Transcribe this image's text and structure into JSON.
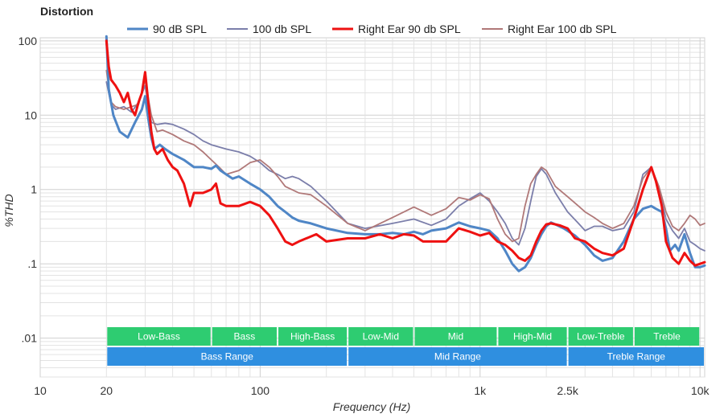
{
  "chart_data": {
    "type": "line",
    "title": "Distortion",
    "xlabel": "Frequency (Hz)",
    "ylabel": "%THD",
    "xscale": "log",
    "yscale": "log",
    "xlim": [
      10,
      10500
    ],
    "ylim": [
      0.003,
      110
    ],
    "legend_position": "top",
    "x_ticks": [
      {
        "value": 10,
        "label": "10"
      },
      {
        "value": 20,
        "label": "20"
      },
      {
        "value": 100,
        "label": "100"
      },
      {
        "value": 1000,
        "label": "1k"
      },
      {
        "value": 2500,
        "label": "2.5k"
      },
      {
        "value": 10000,
        "label": "10k"
      }
    ],
    "y_ticks": [
      {
        "value": 100,
        "label": "100"
      },
      {
        "value": 10,
        "label": "10"
      },
      {
        "value": 1,
        "label": "1"
      },
      {
        "value": 0.1,
        "label": ".1"
      },
      {
        "value": 0.01,
        "label": ".01"
      }
    ],
    "series": [
      {
        "name": "90 dB SPL",
        "color": "#4f86c6",
        "points": [
          [
            20,
            115
          ],
          [
            20.5,
            22
          ],
          [
            21.5,
            10
          ],
          [
            23,
            6
          ],
          [
            25,
            5
          ],
          [
            27,
            8
          ],
          [
            29,
            12
          ],
          [
            30,
            18
          ],
          [
            31,
            9
          ],
          [
            32,
            5
          ],
          [
            33,
            3.5
          ],
          [
            35,
            4
          ],
          [
            37,
            3.5
          ],
          [
            40,
            3
          ],
          [
            45,
            2.5
          ],
          [
            50,
            2
          ],
          [
            55,
            2
          ],
          [
            60,
            1.9
          ],
          [
            63,
            2.1
          ],
          [
            66,
            1.8
          ],
          [
            70,
            1.6
          ],
          [
            75,
            1.4
          ],
          [
            80,
            1.5
          ],
          [
            90,
            1.2
          ],
          [
            100,
            1
          ],
          [
            110,
            0.8
          ],
          [
            120,
            0.6
          ],
          [
            130,
            0.5
          ],
          [
            140,
            0.42
          ],
          [
            150,
            0.38
          ],
          [
            170,
            0.35
          ],
          [
            200,
            0.3
          ],
          [
            250,
            0.26
          ],
          [
            300,
            0.25
          ],
          [
            350,
            0.25
          ],
          [
            400,
            0.26
          ],
          [
            450,
            0.25
          ],
          [
            500,
            0.27
          ],
          [
            550,
            0.25
          ],
          [
            600,
            0.28
          ],
          [
            700,
            0.3
          ],
          [
            800,
            0.36
          ],
          [
            900,
            0.32
          ],
          [
            1000,
            0.3
          ],
          [
            1100,
            0.28
          ],
          [
            1200,
            0.22
          ],
          [
            1300,
            0.15
          ],
          [
            1400,
            0.1
          ],
          [
            1500,
            0.08
          ],
          [
            1600,
            0.09
          ],
          [
            1700,
            0.12
          ],
          [
            1800,
            0.18
          ],
          [
            1900,
            0.25
          ],
          [
            2000,
            0.32
          ],
          [
            2100,
            0.36
          ],
          [
            2200,
            0.34
          ],
          [
            2400,
            0.3
          ],
          [
            2700,
            0.24
          ],
          [
            3000,
            0.18
          ],
          [
            3300,
            0.13
          ],
          [
            3600,
            0.11
          ],
          [
            4000,
            0.12
          ],
          [
            4500,
            0.2
          ],
          [
            5000,
            0.4
          ],
          [
            5500,
            0.55
          ],
          [
            6000,
            0.6
          ],
          [
            6300,
            0.55
          ],
          [
            6700,
            0.5
          ],
          [
            7000,
            0.3
          ],
          [
            7300,
            0.15
          ],
          [
            7700,
            0.18
          ],
          [
            8000,
            0.15
          ],
          [
            8500,
            0.25
          ],
          [
            9000,
            0.14
          ],
          [
            9500,
            0.09
          ],
          [
            10000,
            0.09
          ],
          [
            10500,
            0.095
          ]
        ]
      },
      {
        "name": "100 db SPL",
        "color": "#7b7eaa",
        "points": [
          [
            20,
            28
          ],
          [
            21,
            14
          ],
          [
            22,
            12
          ],
          [
            24,
            13
          ],
          [
            26,
            11
          ],
          [
            28,
            15
          ],
          [
            30,
            25
          ],
          [
            32,
            8
          ],
          [
            34,
            7.5
          ],
          [
            37,
            7.8
          ],
          [
            40,
            7.5
          ],
          [
            45,
            6.5
          ],
          [
            50,
            5.5
          ],
          [
            55,
            4.5
          ],
          [
            60,
            4
          ],
          [
            70,
            3.5
          ],
          [
            80,
            3.2
          ],
          [
            90,
            2.8
          ],
          [
            100,
            2.3
          ],
          [
            110,
            1.8
          ],
          [
            120,
            1.6
          ],
          [
            130,
            1.4
          ],
          [
            140,
            1.5
          ],
          [
            150,
            1.4
          ],
          [
            170,
            1.1
          ],
          [
            200,
            0.7
          ],
          [
            250,
            0.35
          ],
          [
            300,
            0.3
          ],
          [
            400,
            0.35
          ],
          [
            500,
            0.4
          ],
          [
            600,
            0.33
          ],
          [
            700,
            0.4
          ],
          [
            800,
            0.6
          ],
          [
            900,
            0.75
          ],
          [
            1000,
            0.9
          ],
          [
            1100,
            0.7
          ],
          [
            1200,
            0.5
          ],
          [
            1300,
            0.35
          ],
          [
            1400,
            0.22
          ],
          [
            1500,
            0.18
          ],
          [
            1600,
            0.3
          ],
          [
            1700,
            0.7
          ],
          [
            1800,
            1.5
          ],
          [
            1900,
            1.9
          ],
          [
            2000,
            1.6
          ],
          [
            2200,
            0.9
          ],
          [
            2500,
            0.5
          ],
          [
            2800,
            0.35
          ],
          [
            3000,
            0.28
          ],
          [
            3300,
            0.32
          ],
          [
            3600,
            0.32
          ],
          [
            4000,
            0.28
          ],
          [
            4500,
            0.3
          ],
          [
            5000,
            0.5
          ],
          [
            5500,
            1.6
          ],
          [
            6000,
            2.0
          ],
          [
            6500,
            1.0
          ],
          [
            7000,
            0.4
          ],
          [
            7500,
            0.28
          ],
          [
            8000,
            0.22
          ],
          [
            8500,
            0.3
          ],
          [
            9000,
            0.2
          ],
          [
            9500,
            0.18
          ],
          [
            10000,
            0.16
          ],
          [
            10500,
            0.15
          ]
        ]
      },
      {
        "name": "Right Ear 90 db SPL",
        "color": "#ee1111",
        "points": [
          [
            20,
            100
          ],
          [
            20.5,
            45
          ],
          [
            21,
            30
          ],
          [
            22,
            25
          ],
          [
            23,
            20
          ],
          [
            24,
            15
          ],
          [
            25,
            20
          ],
          [
            26,
            12
          ],
          [
            27,
            10
          ],
          [
            28,
            15
          ],
          [
            29,
            20
          ],
          [
            30,
            38
          ],
          [
            31,
            15
          ],
          [
            32,
            6
          ],
          [
            33,
            3.5
          ],
          [
            34,
            3
          ],
          [
            36,
            3.5
          ],
          [
            38,
            2.5
          ],
          [
            40,
            2
          ],
          [
            42,
            1.8
          ],
          [
            45,
            1.2
          ],
          [
            48,
            0.6
          ],
          [
            50,
            0.9
          ],
          [
            55,
            0.9
          ],
          [
            60,
            1
          ],
          [
            63,
            1.2
          ],
          [
            66,
            0.65
          ],
          [
            70,
            0.6
          ],
          [
            80,
            0.6
          ],
          [
            90,
            0.68
          ],
          [
            100,
            0.6
          ],
          [
            110,
            0.45
          ],
          [
            120,
            0.3
          ],
          [
            130,
            0.2
          ],
          [
            140,
            0.18
          ],
          [
            150,
            0.2
          ],
          [
            180,
            0.25
          ],
          [
            200,
            0.2
          ],
          [
            250,
            0.22
          ],
          [
            300,
            0.22
          ],
          [
            350,
            0.25
          ],
          [
            400,
            0.22
          ],
          [
            450,
            0.25
          ],
          [
            500,
            0.24
          ],
          [
            550,
            0.2
          ],
          [
            600,
            0.2
          ],
          [
            650,
            0.2
          ],
          [
            700,
            0.2
          ],
          [
            800,
            0.3
          ],
          [
            900,
            0.27
          ],
          [
            1000,
            0.24
          ],
          [
            1100,
            0.26
          ],
          [
            1200,
            0.2
          ],
          [
            1300,
            0.18
          ],
          [
            1400,
            0.15
          ],
          [
            1500,
            0.12
          ],
          [
            1600,
            0.11
          ],
          [
            1700,
            0.13
          ],
          [
            1800,
            0.2
          ],
          [
            1900,
            0.28
          ],
          [
            2000,
            0.34
          ],
          [
            2100,
            0.35
          ],
          [
            2300,
            0.33
          ],
          [
            2500,
            0.3
          ],
          [
            2700,
            0.22
          ],
          [
            3000,
            0.2
          ],
          [
            3300,
            0.16
          ],
          [
            3600,
            0.14
          ],
          [
            4000,
            0.13
          ],
          [
            4500,
            0.16
          ],
          [
            5000,
            0.4
          ],
          [
            5500,
            1.0
          ],
          [
            6000,
            2.0
          ],
          [
            6300,
            1.3
          ],
          [
            6700,
            0.6
          ],
          [
            7000,
            0.2
          ],
          [
            7500,
            0.12
          ],
          [
            8000,
            0.1
          ],
          [
            8500,
            0.14
          ],
          [
            9000,
            0.11
          ],
          [
            9500,
            0.095
          ],
          [
            10000,
            0.1
          ],
          [
            10500,
            0.105
          ]
        ]
      },
      {
        "name": "Right Ear 100 db SPL",
        "color": "#b07878",
        "points": [
          [
            20,
            40
          ],
          [
            21,
            15
          ],
          [
            22,
            13
          ],
          [
            24,
            12
          ],
          [
            26,
            13
          ],
          [
            28,
            14
          ],
          [
            30,
            30
          ],
          [
            32,
            10
          ],
          [
            34,
            6
          ],
          [
            36,
            6.3
          ],
          [
            40,
            5.5
          ],
          [
            45,
            4.5
          ],
          [
            50,
            4
          ],
          [
            55,
            3.2
          ],
          [
            60,
            2.5
          ],
          [
            65,
            2
          ],
          [
            70,
            1.6
          ],
          [
            80,
            1.8
          ],
          [
            90,
            2.3
          ],
          [
            100,
            2.5
          ],
          [
            110,
            2
          ],
          [
            120,
            1.5
          ],
          [
            130,
            1.1
          ],
          [
            150,
            0.9
          ],
          [
            170,
            0.85
          ],
          [
            200,
            0.6
          ],
          [
            250,
            0.35
          ],
          [
            300,
            0.28
          ],
          [
            400,
            0.42
          ],
          [
            500,
            0.58
          ],
          [
            600,
            0.45
          ],
          [
            700,
            0.55
          ],
          [
            800,
            0.78
          ],
          [
            900,
            0.72
          ],
          [
            1000,
            0.85
          ],
          [
            1100,
            0.75
          ],
          [
            1200,
            0.4
          ],
          [
            1300,
            0.25
          ],
          [
            1400,
            0.2
          ],
          [
            1500,
            0.22
          ],
          [
            1600,
            0.6
          ],
          [
            1700,
            1.2
          ],
          [
            1800,
            1.6
          ],
          [
            1900,
            2.0
          ],
          [
            2000,
            1.8
          ],
          [
            2200,
            1.1
          ],
          [
            2500,
            0.8
          ],
          [
            2800,
            0.6
          ],
          [
            3000,
            0.5
          ],
          [
            3300,
            0.42
          ],
          [
            3600,
            0.35
          ],
          [
            4000,
            0.3
          ],
          [
            4500,
            0.35
          ],
          [
            5000,
            0.6
          ],
          [
            5500,
            1.4
          ],
          [
            6000,
            2.0
          ],
          [
            6500,
            1.1
          ],
          [
            7000,
            0.5
          ],
          [
            7500,
            0.32
          ],
          [
            8000,
            0.28
          ],
          [
            8500,
            0.35
          ],
          [
            9000,
            0.45
          ],
          [
            9500,
            0.4
          ],
          [
            10000,
            0.33
          ],
          [
            10500,
            0.35
          ]
        ]
      }
    ],
    "bands_top": [
      {
        "label": "Low-Bass",
        "from": 20,
        "to": 60
      },
      {
        "label": "Bass",
        "from": 60,
        "to": 120
      },
      {
        "label": "High-Bass",
        "from": 120,
        "to": 250
      },
      {
        "label": "Low-Mid",
        "from": 250,
        "to": 500
      },
      {
        "label": "Mid",
        "from": 500,
        "to": 1200
      },
      {
        "label": "High-Mid",
        "from": 1200,
        "to": 2500
      },
      {
        "label": "Low-Treble",
        "from": 2500,
        "to": 5000
      },
      {
        "label": "Treble",
        "from": 5000,
        "to": 10000
      }
    ],
    "bands_bottom": [
      {
        "label": "Bass Range",
        "from": 20,
        "to": 250
      },
      {
        "label": "Mid Range",
        "from": 250,
        "to": 2500
      },
      {
        "label": "Treble Range",
        "from": 2500,
        "to": 10500
      }
    ],
    "colors": {
      "band_top": "#2ecc71",
      "band_bottom": "#2f8fe0",
      "grid": "#d0d0d0",
      "grid_minor": "#e3e3e3",
      "axis": "#999999"
    }
  }
}
